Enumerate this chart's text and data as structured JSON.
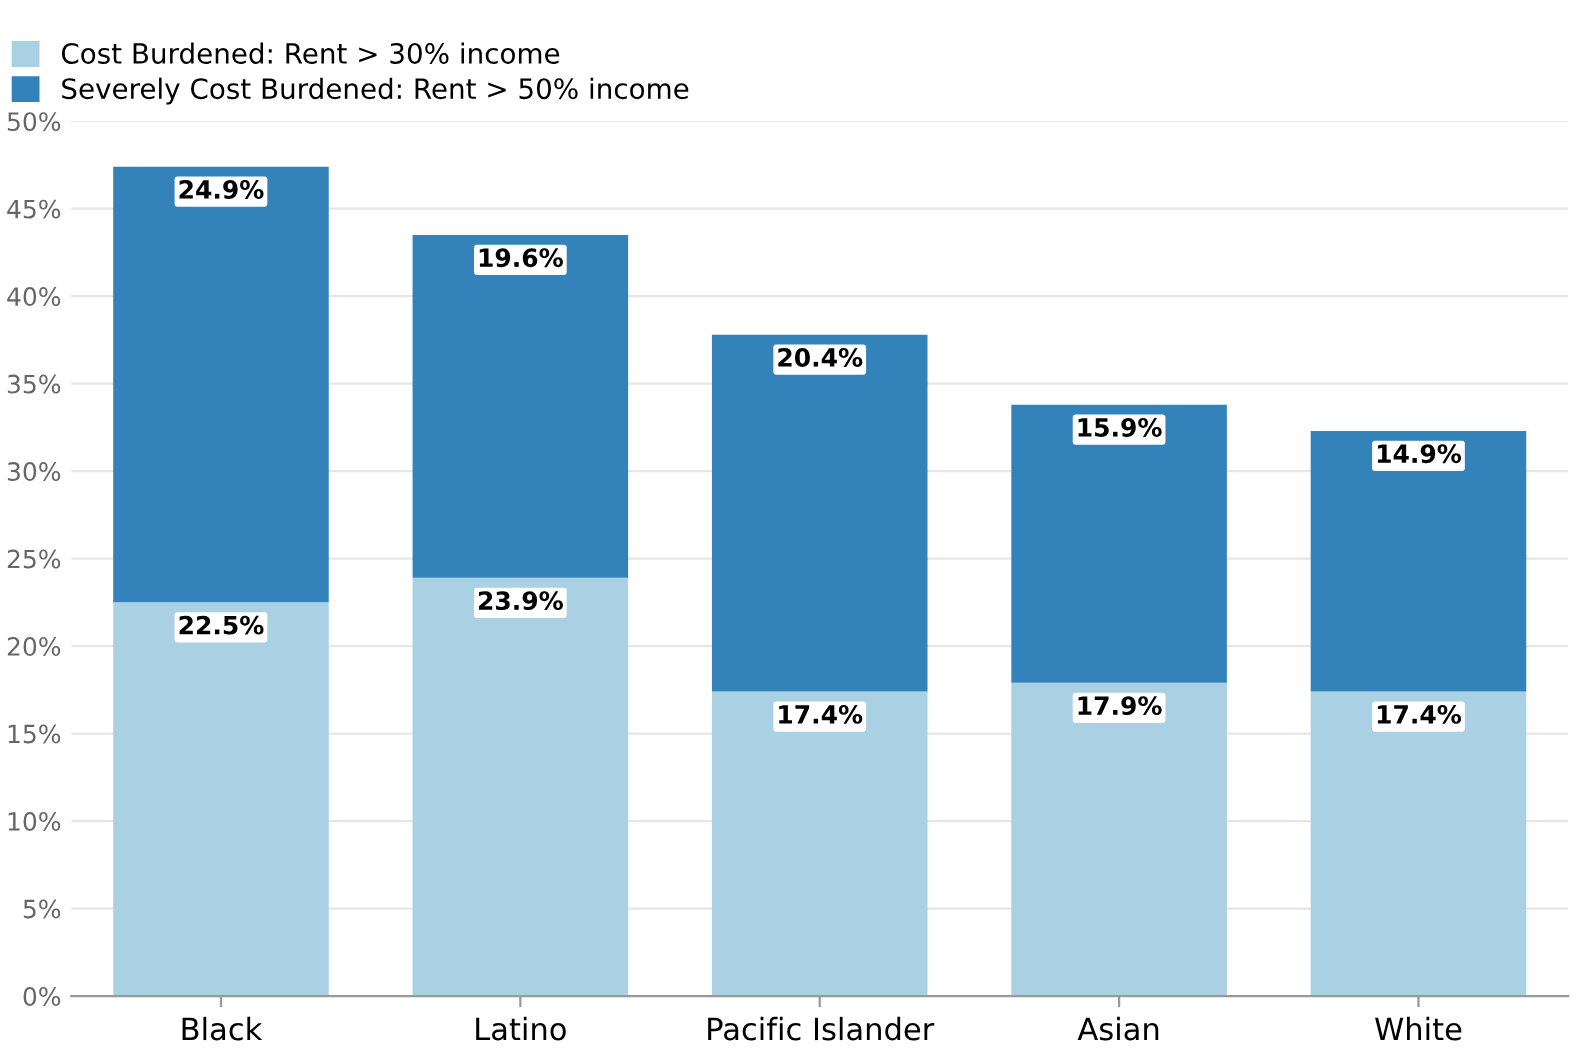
{
  "chart_data": {
    "type": "bar",
    "stacked": true,
    "categories": [
      "Black",
      "Latino",
      "Pacific Islander",
      "Asian",
      "White"
    ],
    "series": [
      {
        "name": "Cost Burdened: Rent > 30% income",
        "color": "#aad0e4",
        "values": [
          22.5,
          23.9,
          17.4,
          17.9,
          17.4
        ],
        "value_labels": [
          "22.5%",
          "23.9%",
          "17.4%",
          "17.9%",
          "17.4%"
        ]
      },
      {
        "name": "Severely Cost Burdened: Rent > 50% income",
        "color": "#3382ba",
        "values": [
          24.9,
          19.6,
          20.4,
          15.9,
          14.9
        ],
        "value_labels": [
          "24.9%",
          "19.6%",
          "20.4%",
          "15.9%",
          "14.9%"
        ]
      }
    ],
    "ylim": [
      0,
      50
    ],
    "yticks": [
      {
        "value": 0,
        "label": "0%"
      },
      {
        "value": 5,
        "label": "5%"
      },
      {
        "value": 10,
        "label": "10%"
      },
      {
        "value": 15,
        "label": "15%"
      },
      {
        "value": 20,
        "label": "20%"
      },
      {
        "value": 25,
        "label": "25%"
      },
      {
        "value": 30,
        "label": "30%"
      },
      {
        "value": 35,
        "label": "35%"
      },
      {
        "value": 40,
        "label": "40%"
      },
      {
        "value": 45,
        "label": "45%"
      },
      {
        "value": 50,
        "label": "50%"
      }
    ],
    "grid": "y",
    "legend": "top left"
  }
}
